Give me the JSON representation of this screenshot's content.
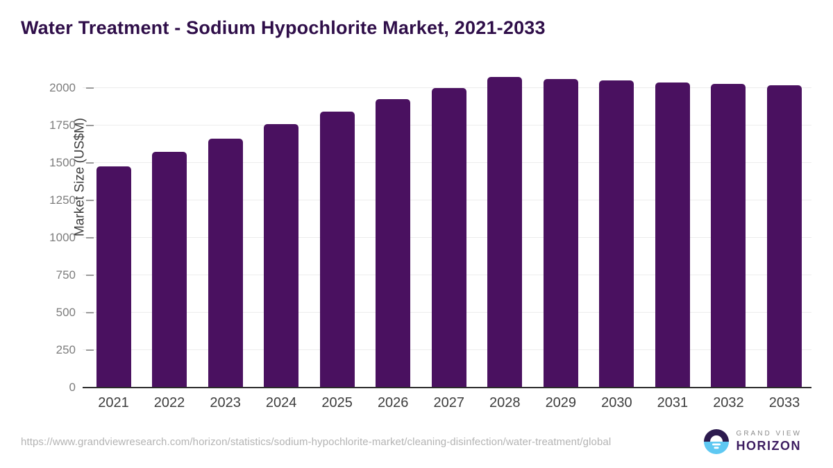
{
  "title": "Water Treatment - Sodium Hypochlorite Market, 2021-2033",
  "chart_data": {
    "type": "bar",
    "title": "Water Treatment - Sodium Hypochlorite Market, 2021-2033",
    "categories": [
      "2021",
      "2022",
      "2023",
      "2024",
      "2025",
      "2026",
      "2027",
      "2028",
      "2029",
      "2030",
      "2031",
      "2032",
      "2033"
    ],
    "values": [
      1478,
      1575,
      1663,
      1757,
      1841,
      1926,
      2001,
      2074,
      2059,
      2049,
      2038,
      2028,
      2018
    ],
    "xlabel": "",
    "ylabel": "Market Size (US$M)",
    "yticks": [
      0,
      250,
      500,
      750,
      1000,
      1250,
      1500,
      1750,
      2000
    ],
    "ylim": [
      0,
      2125
    ],
    "grid": "horizontal",
    "legend_position": "none",
    "bar_color": "#4a1160"
  },
  "footer": {
    "source_url": "https://www.grandviewresearch.com/horizon/statistics/sodium-hypochlorite-market/cleaning-disinfection/water-treatment/global",
    "logo": {
      "line1": "GRAND VIEW",
      "line2": "HORIZON",
      "icon": "horizon-sunset-circle-icon",
      "colors": {
        "circle_top": "#2c1a4e",
        "circle_bottom": "#5ec8f2",
        "text_top": "#8b8b8b",
        "text_bottom": "#3c1c60"
      }
    }
  },
  "colors": {
    "title": "#2f0e49",
    "bar": "#4a1160",
    "axis_line": "#2b2b2b",
    "gridline": "#ececec",
    "y_tick_label": "#7c7c7c",
    "x_tick_label": "#3c3c3c",
    "background": "#ffffff"
  }
}
